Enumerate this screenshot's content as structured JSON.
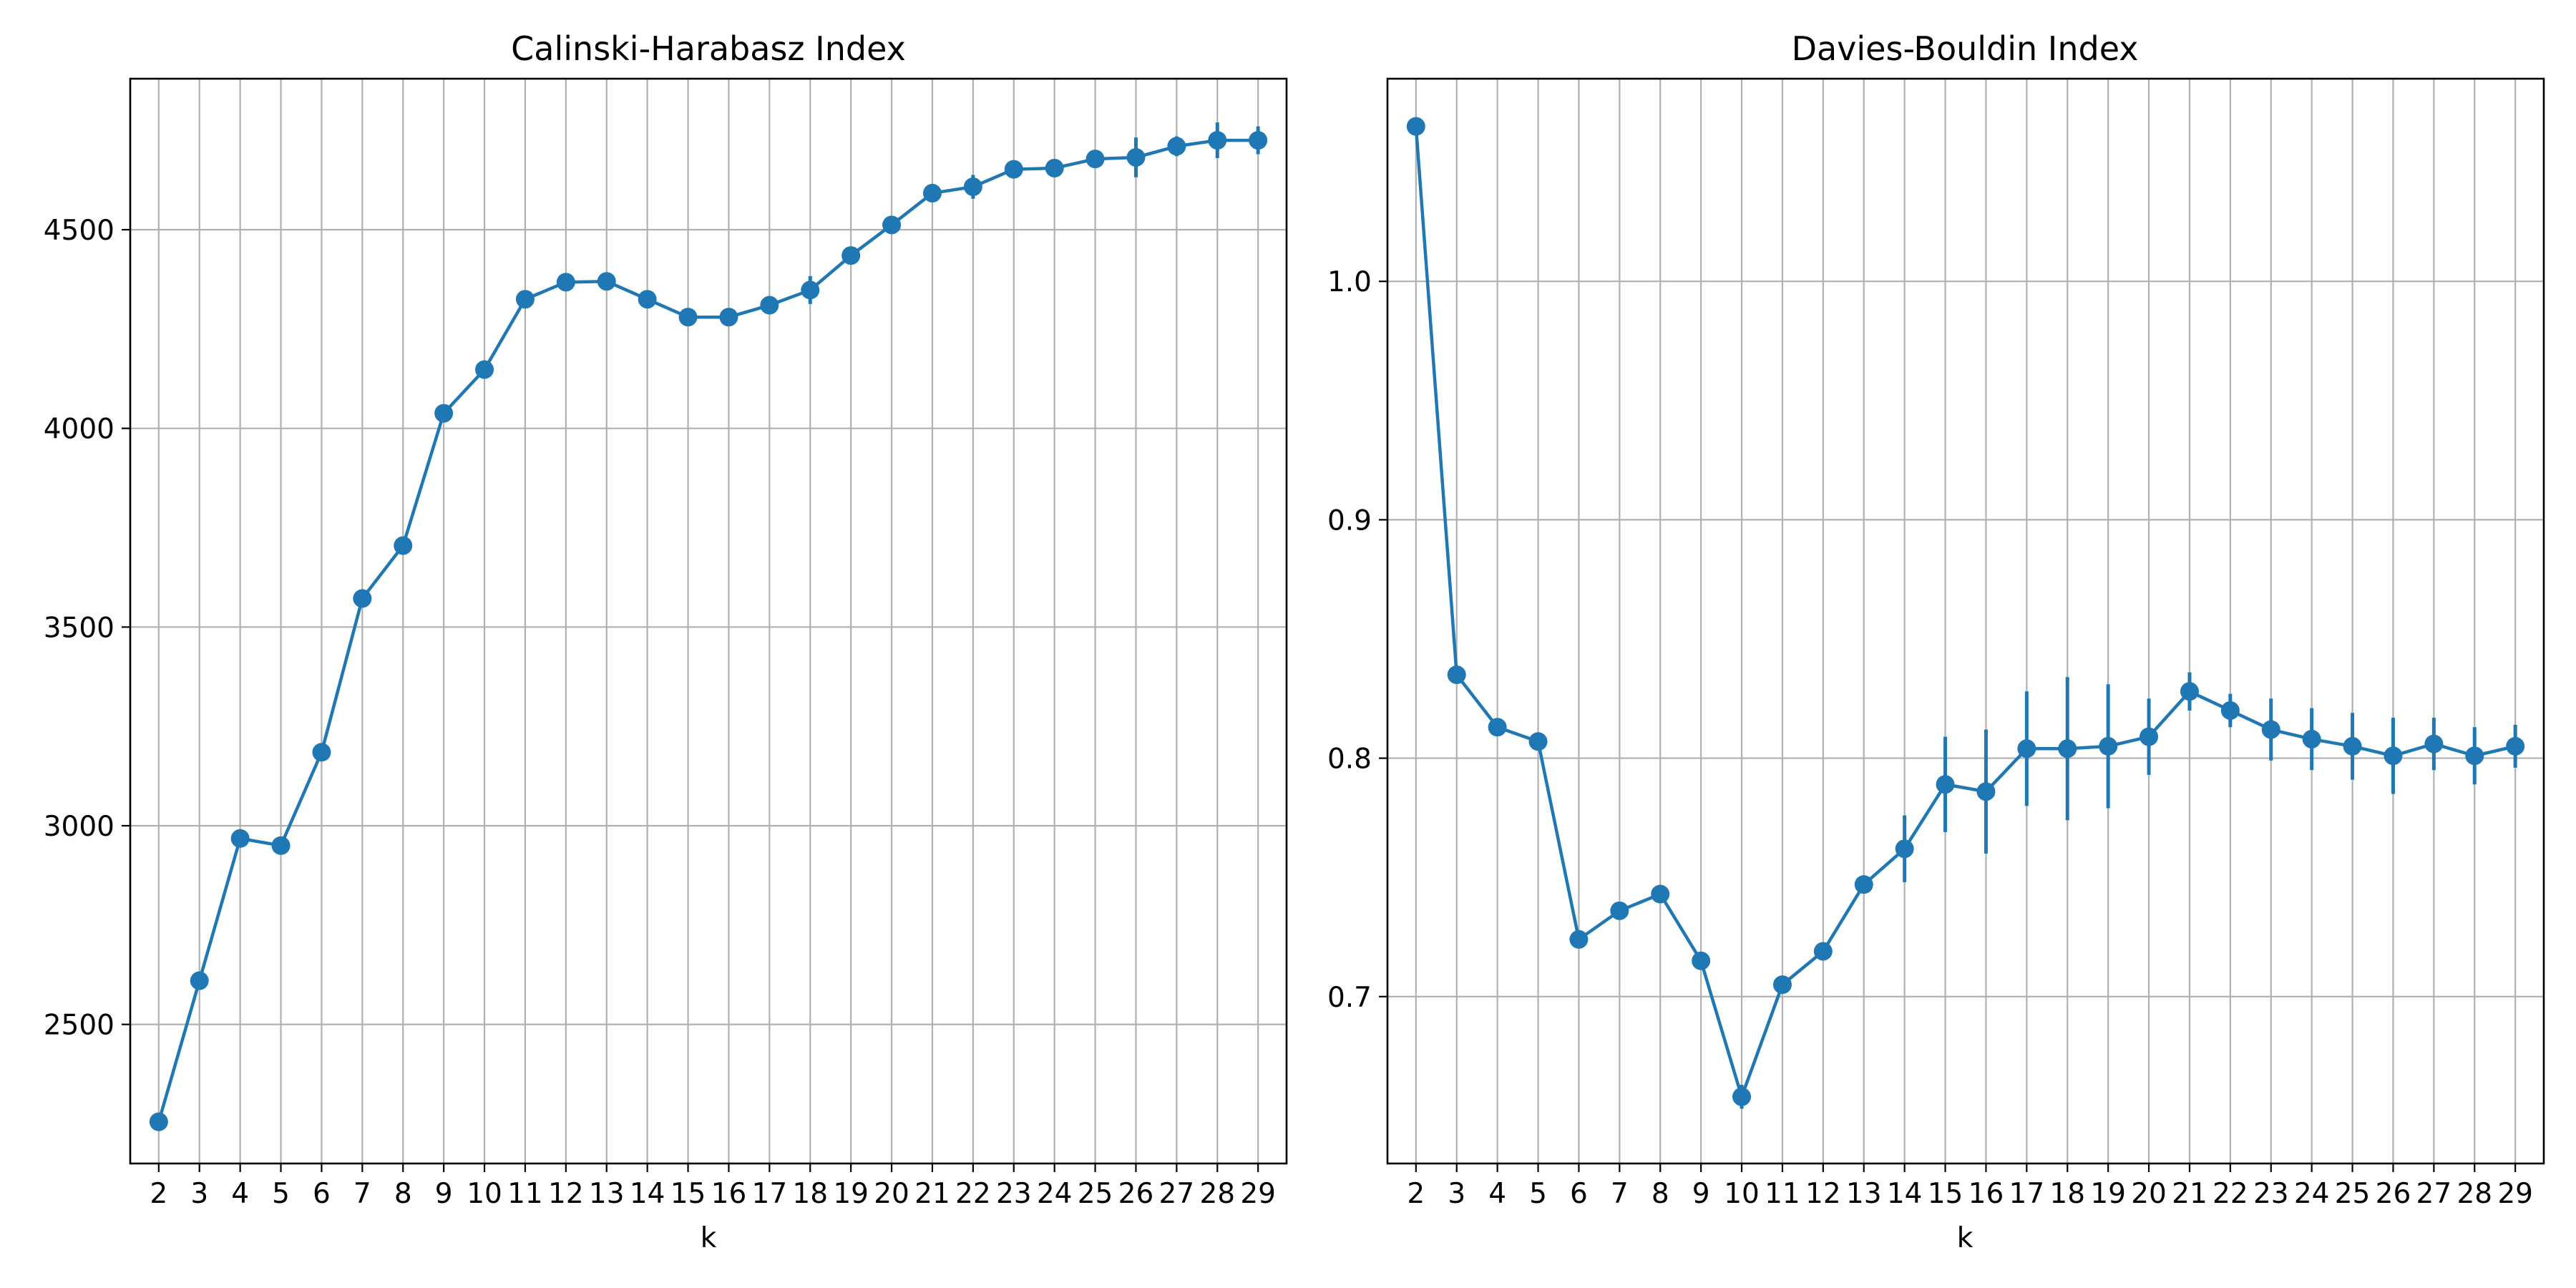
{
  "chart_data": [
    {
      "type": "line",
      "title": "Calinski-Harabasz Index",
      "xlabel": "k",
      "ylabel": "",
      "x": [
        2,
        3,
        4,
        5,
        6,
        7,
        8,
        9,
        10,
        11,
        12,
        13,
        14,
        15,
        16,
        17,
        18,
        19,
        20,
        21,
        22,
        23,
        24,
        25,
        26,
        27,
        28,
        29
      ],
      "xticks": [
        "2",
        "3",
        "4",
        "5",
        "6",
        "7",
        "8",
        "9",
        "10",
        "11",
        "12",
        "13",
        "14",
        "15",
        "16",
        "17",
        "18",
        "19",
        "20",
        "21",
        "22",
        "23",
        "24",
        "25",
        "26",
        "27",
        "28",
        "29"
      ],
      "yticks": [
        2500,
        3000,
        3500,
        4000,
        4500
      ],
      "ytick_labels": [
        "2500",
        "3000",
        "3500",
        "4000",
        "4500"
      ],
      "ylim": [
        2150,
        4880
      ],
      "xlim": [
        1.3,
        29.7
      ],
      "grid": true,
      "marker": "circle",
      "color": "#1f77b4",
      "series": [
        {
          "values": [
            2255,
            2610,
            2968,
            2950,
            3185,
            3572,
            3705,
            4038,
            4148,
            4325,
            4368,
            4370,
            4325,
            4280,
            4280,
            4310,
            4348,
            4435,
            4512,
            4592,
            4608,
            4652,
            4655,
            4678,
            4682,
            4710,
            4725,
            4725
          ],
          "errors": [
            5,
            5,
            5,
            5,
            5,
            5,
            5,
            5,
            5,
            10,
            8,
            8,
            8,
            8,
            8,
            10,
            35,
            10,
            10,
            20,
            30,
            10,
            10,
            15,
            50,
            25,
            45,
            35
          ]
        }
      ]
    },
    {
      "type": "line",
      "title": "Davies-Bouldin Index",
      "xlabel": "k",
      "ylabel": "",
      "x": [
        2,
        3,
        4,
        5,
        6,
        7,
        8,
        9,
        10,
        11,
        12,
        13,
        14,
        15,
        16,
        17,
        18,
        19,
        20,
        21,
        22,
        23,
        24,
        25,
        26,
        27,
        28,
        29
      ],
      "xticks": [
        "2",
        "3",
        "4",
        "5",
        "6",
        "7",
        "8",
        "9",
        "10",
        "11",
        "12",
        "13",
        "14",
        "15",
        "16",
        "17",
        "18",
        "19",
        "20",
        "21",
        "22",
        "23",
        "24",
        "25",
        "26",
        "27",
        "28",
        "29"
      ],
      "yticks": [
        0.7,
        0.8,
        0.9,
        1.0
      ],
      "ytick_labels": [
        "0.7",
        "0.8",
        "0.9",
        "1.0"
      ],
      "ylim": [
        0.63,
        1.085
      ],
      "xlim": [
        1.3,
        29.7
      ],
      "grid": true,
      "marker": "circle",
      "color": "#1f77b4",
      "series": [
        {
          "values": [
            1.065,
            0.835,
            0.813,
            0.807,
            0.724,
            0.736,
            0.743,
            0.715,
            0.658,
            0.705,
            0.719,
            0.747,
            0.762,
            0.789,
            0.786,
            0.804,
            0.804,
            0.805,
            0.809,
            0.828,
            0.82,
            0.812,
            0.808,
            0.805,
            0.801,
            0.806,
            0.801,
            0.805
          ],
          "errors": [
            0.002,
            0.002,
            0.002,
            0.002,
            0.002,
            0.002,
            0.002,
            0.002,
            0.005,
            0.003,
            0.003,
            0.003,
            0.014,
            0.02,
            0.026,
            0.024,
            0.03,
            0.026,
            0.016,
            0.008,
            0.007,
            0.013,
            0.013,
            0.014,
            0.016,
            0.011,
            0.012,
            0.009
          ]
        }
      ]
    }
  ]
}
